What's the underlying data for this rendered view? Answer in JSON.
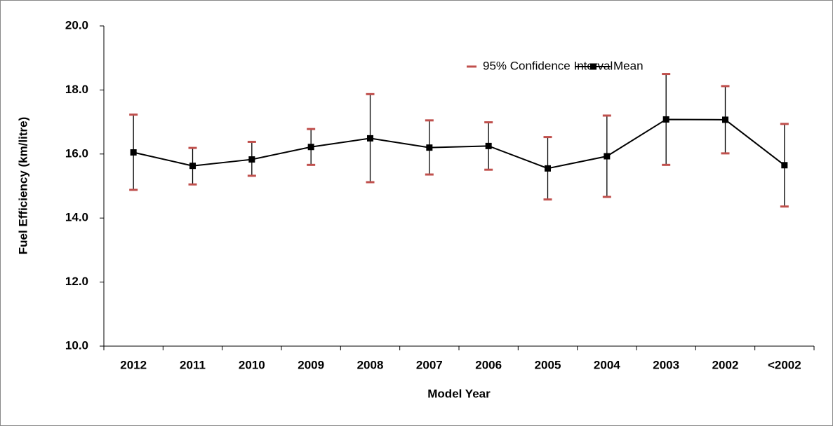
{
  "chart_data": {
    "type": "line",
    "x_label": "Model Year",
    "y_label": "Fuel Efficiency (km/litre)",
    "categories": [
      "2012",
      "2011",
      "2010",
      "2009",
      "2008",
      "2007",
      "2006",
      "2005",
      "2004",
      "2003",
      "2002",
      "<2002"
    ],
    "series": [
      {
        "name": "Mean",
        "color": "#000000",
        "values": [
          16.05,
          15.63,
          15.83,
          16.22,
          16.49,
          16.2,
          16.25,
          15.55,
          15.93,
          17.08,
          17.07,
          15.65
        ],
        "error_name": "95% Confidence Interval",
        "error_color": "#c0504d",
        "ci_low": [
          14.88,
          15.05,
          15.32,
          15.66,
          15.12,
          15.36,
          15.51,
          14.58,
          14.66,
          15.66,
          16.02,
          14.36
        ],
        "ci_high": [
          17.23,
          16.19,
          16.38,
          16.78,
          17.87,
          17.05,
          16.99,
          16.53,
          17.2,
          18.5,
          18.12,
          16.94
        ]
      }
    ],
    "ylim": [
      10,
      20
    ],
    "yticks": [
      {
        "value": 10,
        "label": "10.0"
      },
      {
        "value": 12,
        "label": "12.0"
      },
      {
        "value": 14,
        "label": "14.0"
      },
      {
        "value": 16,
        "label": "16.0"
      },
      {
        "value": 18,
        "label": "18.0"
      },
      {
        "value": 20,
        "label": "20.0"
      }
    ],
    "grid": false,
    "legend": "top-right"
  }
}
